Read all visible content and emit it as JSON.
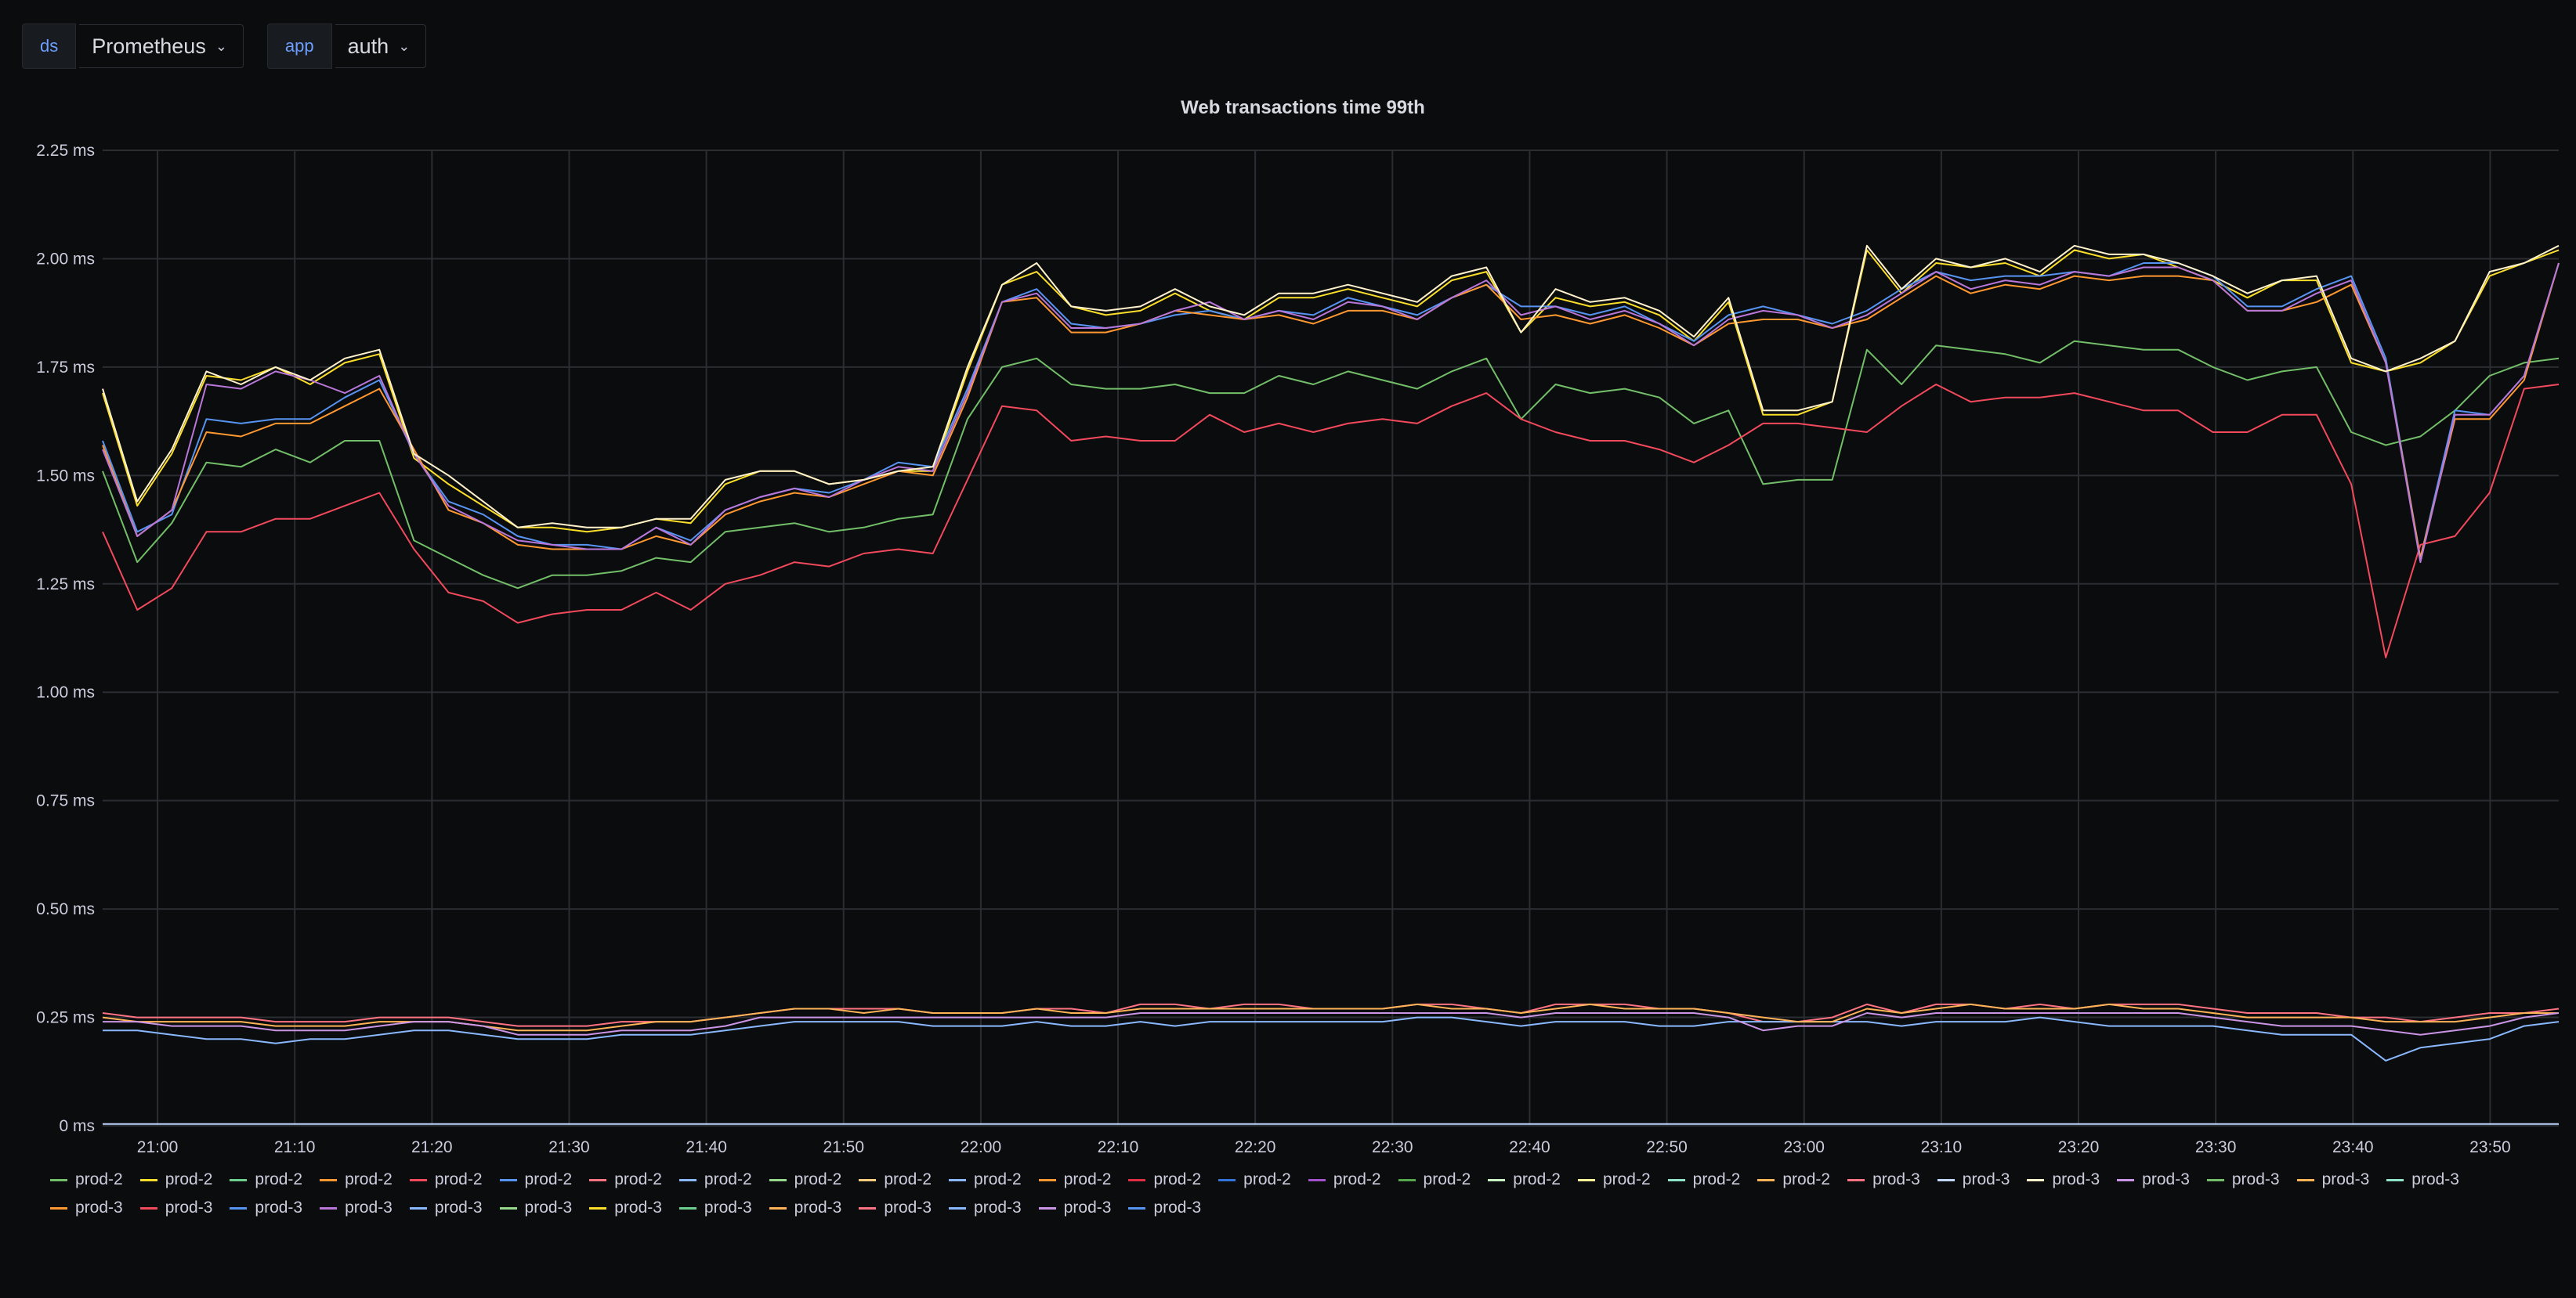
{
  "variables": [
    {
      "label": "ds",
      "value": "Prometheus"
    },
    {
      "label": "app",
      "value": "auth"
    }
  ],
  "chart_data": {
    "type": "line",
    "title": "Web transactions time 99th",
    "unit": "ms",
    "y_ticks": [
      "2.25 ms",
      "2.00 ms",
      "1.75 ms",
      "1.50 ms",
      "1.25 ms",
      "1.00 ms",
      "0.75 ms",
      "0.50 ms",
      "0.25 ms",
      "0 ms"
    ],
    "ylim": [
      0,
      2.25
    ],
    "x_ticks": [
      "21:00",
      "21:10",
      "21:20",
      "21:30",
      "21:40",
      "21:50",
      "22:00",
      "22:10",
      "22:20",
      "22:30",
      "22:40",
      "22:50",
      "23:00",
      "23:10",
      "23:20",
      "23:30",
      "23:40",
      "23:50"
    ],
    "x_range": [
      "20:56",
      "23:55"
    ],
    "grid": true,
    "legend_position": "bottom",
    "series": [
      {
        "name": "prod-2",
        "color": "#73bf69",
        "values": [
          1.51,
          1.3,
          1.39,
          1.53,
          1.52,
          1.56,
          1.53,
          1.58,
          1.58,
          1.35,
          1.31,
          1.27,
          1.24,
          1.27,
          1.27,
          1.28,
          1.31,
          1.3,
          1.37,
          1.38,
          1.39,
          1.37,
          1.38,
          1.4,
          1.41,
          1.63,
          1.75,
          1.77,
          1.71,
          1.7,
          1.7,
          1.71,
          1.69,
          1.69,
          1.73,
          1.71,
          1.74,
          1.72,
          1.7,
          1.74,
          1.77,
          1.63,
          1.71,
          1.69,
          1.7,
          1.68,
          1.62,
          1.65,
          1.48,
          1.49,
          1.49,
          1.79,
          1.71,
          1.8,
          1.79,
          1.78,
          1.76,
          1.81,
          1.8,
          1.79,
          1.79,
          1.75,
          1.72,
          1.74,
          1.75,
          1.6,
          1.57,
          1.59,
          1.65,
          1.73,
          1.76,
          1.77
        ]
      },
      {
        "name": "prod-2",
        "color": "#fade2a",
        "values": [
          1.69,
          1.43,
          1.55,
          1.73,
          1.72,
          1.75,
          1.71,
          1.76,
          1.78,
          1.54,
          1.48,
          1.43,
          1.38,
          1.38,
          1.37,
          1.38,
          1.4,
          1.39,
          1.48,
          1.51,
          1.51,
          1.48,
          1.49,
          1.51,
          1.51,
          1.74,
          1.94,
          1.97,
          1.89,
          1.87,
          1.88,
          1.92,
          1.88,
          1.86,
          1.91,
          1.91,
          1.93,
          1.91,
          1.89,
          1.95,
          1.97,
          1.83,
          1.91,
          1.89,
          1.9,
          1.87,
          1.81,
          1.9,
          1.64,
          1.64,
          1.67,
          2.02,
          1.92,
          1.99,
          1.98,
          1.99,
          1.96,
          2.02,
          2.0,
          2.01,
          1.98,
          1.95,
          1.91,
          1.95,
          1.95,
          1.76,
          1.74,
          1.76,
          1.81,
          1.96,
          1.99,
          2.02
        ]
      },
      {
        "name": "prod-2",
        "color": "#5794f2",
        "values": [
          1.58,
          1.37,
          1.41,
          1.63,
          1.62,
          1.63,
          1.63,
          1.68,
          1.72,
          1.55,
          1.44,
          1.41,
          1.36,
          1.34,
          1.34,
          1.33,
          1.38,
          1.35,
          1.42,
          1.45,
          1.47,
          1.46,
          1.49,
          1.53,
          1.52,
          1.7,
          1.9,
          1.93,
          1.85,
          1.84,
          1.85,
          1.87,
          1.88,
          1.86,
          1.88,
          1.87,
          1.91,
          1.89,
          1.87,
          1.91,
          1.94,
          1.89,
          1.89,
          1.87,
          1.89,
          1.85,
          1.81,
          1.87,
          1.89,
          1.87,
          1.85,
          1.88,
          1.93,
          1.97,
          1.95,
          1.96,
          1.96,
          1.97,
          1.96,
          1.99,
          1.99,
          1.96,
          1.89,
          1.89,
          1.93,
          1.96,
          1.77,
          1.31,
          1.65,
          1.64,
          1.73,
          1.99
        ]
      },
      {
        "name": "prod-2",
        "color": "#ff9830",
        "values": [
          1.57,
          1.36,
          1.42,
          1.6,
          1.59,
          1.62,
          1.62,
          1.66,
          1.7,
          1.56,
          1.42,
          1.39,
          1.34,
          1.33,
          1.33,
          1.33,
          1.36,
          1.34,
          1.41,
          1.44,
          1.46,
          1.45,
          1.48,
          1.51,
          1.5,
          1.68,
          1.9,
          1.91,
          1.83,
          1.83,
          1.85,
          1.88,
          1.87,
          1.86,
          1.87,
          1.85,
          1.88,
          1.88,
          1.86,
          1.91,
          1.94,
          1.86,
          1.87,
          1.85,
          1.87,
          1.84,
          1.8,
          1.85,
          1.86,
          1.86,
          1.84,
          1.86,
          1.91,
          1.96,
          1.92,
          1.94,
          1.93,
          1.96,
          1.95,
          1.96,
          1.96,
          1.95,
          1.88,
          1.88,
          1.9,
          1.94,
          1.76,
          1.31,
          1.63,
          1.63,
          1.72,
          1.99
        ]
      },
      {
        "name": "prod-2",
        "color": "#f2495c",
        "values": [
          1.37,
          1.19,
          1.24,
          1.37,
          1.37,
          1.4,
          1.4,
          1.43,
          1.46,
          1.33,
          1.23,
          1.21,
          1.16,
          1.18,
          1.19,
          1.19,
          1.23,
          1.19,
          1.25,
          1.27,
          1.3,
          1.29,
          1.32,
          1.33,
          1.32,
          1.49,
          1.66,
          1.65,
          1.58,
          1.59,
          1.58,
          1.58,
          1.64,
          1.6,
          1.62,
          1.6,
          1.62,
          1.63,
          1.62,
          1.66,
          1.69,
          1.63,
          1.6,
          1.58,
          1.58,
          1.56,
          1.53,
          1.57,
          1.62,
          1.62,
          1.61,
          1.6,
          1.66,
          1.71,
          1.67,
          1.68,
          1.68,
          1.69,
          1.67,
          1.65,
          1.65,
          1.6,
          1.6,
          1.64,
          1.64,
          1.48,
          1.08,
          1.34,
          1.36,
          1.46,
          1.7,
          1.71
        ]
      },
      {
        "name": "prod-2",
        "color": "#b877d9",
        "values": [
          1.56,
          1.36,
          1.42,
          1.71,
          1.7,
          1.74,
          1.72,
          1.69,
          1.73,
          1.55,
          1.43,
          1.39,
          1.35,
          1.34,
          1.33,
          1.33,
          1.38,
          1.34,
          1.42,
          1.45,
          1.47,
          1.45,
          1.49,
          1.52,
          1.51,
          1.69,
          1.9,
          1.92,
          1.84,
          1.84,
          1.85,
          1.88,
          1.9,
          1.86,
          1.88,
          1.86,
          1.9,
          1.89,
          1.86,
          1.91,
          1.95,
          1.87,
          1.89,
          1.86,
          1.88,
          1.85,
          1.8,
          1.86,
          1.88,
          1.87,
          1.84,
          1.87,
          1.92,
          1.97,
          1.93,
          1.95,
          1.94,
          1.97,
          1.96,
          1.98,
          1.98,
          1.95,
          1.88,
          1.88,
          1.92,
          1.95,
          1.76,
          1.3,
          1.64,
          1.64,
          1.73,
          1.99
        ]
      },
      {
        "name": "prod-2",
        "color": "#fff2cc",
        "values": [
          1.7,
          1.44,
          1.56,
          1.74,
          1.71,
          1.75,
          1.72,
          1.77,
          1.79,
          1.55,
          1.5,
          1.44,
          1.38,
          1.39,
          1.38,
          1.38,
          1.4,
          1.4,
          1.49,
          1.51,
          1.51,
          1.48,
          1.49,
          1.51,
          1.52,
          1.75,
          1.94,
          1.99,
          1.89,
          1.88,
          1.89,
          1.93,
          1.89,
          1.87,
          1.92,
          1.92,
          1.94,
          1.92,
          1.9,
          1.96,
          1.98,
          1.83,
          1.93,
          1.9,
          1.91,
          1.88,
          1.82,
          1.91,
          1.65,
          1.65,
          1.67,
          2.03,
          1.93,
          2.0,
          1.98,
          2.0,
          1.97,
          2.03,
          2.01,
          2.01,
          1.99,
          1.96,
          1.92,
          1.95,
          1.96,
          1.77,
          1.74,
          1.77,
          1.81,
          1.97,
          1.99,
          2.03
        ]
      },
      {
        "name": "prod-2",
        "color": "#ff7383",
        "values": [
          0.26,
          0.25,
          0.25,
          0.25,
          0.25,
          0.24,
          0.24,
          0.24,
          0.25,
          0.25,
          0.25,
          0.24,
          0.23,
          0.23,
          0.23,
          0.24,
          0.24,
          0.24,
          0.25,
          0.26,
          0.27,
          0.27,
          0.27,
          0.27,
          0.26,
          0.26,
          0.26,
          0.27,
          0.27,
          0.26,
          0.28,
          0.28,
          0.27,
          0.28,
          0.28,
          0.27,
          0.27,
          0.27,
          0.28,
          0.28,
          0.27,
          0.26,
          0.28,
          0.28,
          0.28,
          0.27,
          0.27,
          0.26,
          0.24,
          0.24,
          0.25,
          0.28,
          0.26,
          0.28,
          0.28,
          0.27,
          0.28,
          0.27,
          0.28,
          0.28,
          0.28,
          0.27,
          0.26,
          0.26,
          0.26,
          0.25,
          0.25,
          0.24,
          0.25,
          0.26,
          0.26,
          0.27
        ]
      },
      {
        "name": "prod-2",
        "color": "#8ab8ff",
        "values": [
          0.22,
          0.22,
          0.21,
          0.2,
          0.2,
          0.19,
          0.2,
          0.2,
          0.21,
          0.22,
          0.22,
          0.21,
          0.2,
          0.2,
          0.2,
          0.21,
          0.21,
          0.21,
          0.22,
          0.23,
          0.24,
          0.24,
          0.24,
          0.24,
          0.23,
          0.23,
          0.23,
          0.24,
          0.23,
          0.23,
          0.24,
          0.23,
          0.24,
          0.24,
          0.24,
          0.24,
          0.24,
          0.24,
          0.25,
          0.25,
          0.24,
          0.23,
          0.24,
          0.24,
          0.24,
          0.23,
          0.23,
          0.24,
          0.24,
          0.24,
          0.24,
          0.24,
          0.23,
          0.24,
          0.24,
          0.24,
          0.25,
          0.24,
          0.23,
          0.23,
          0.23,
          0.23,
          0.22,
          0.21,
          0.21,
          0.21,
          0.15,
          0.18,
          0.19,
          0.2,
          0.23,
          0.24
        ]
      },
      {
        "name": "prod-2",
        "color": "#ffb357",
        "values": [
          0.25,
          0.24,
          0.24,
          0.24,
          0.24,
          0.23,
          0.23,
          0.23,
          0.24,
          0.24,
          0.24,
          0.23,
          0.22,
          0.22,
          0.22,
          0.23,
          0.24,
          0.24,
          0.25,
          0.26,
          0.27,
          0.27,
          0.26,
          0.27,
          0.26,
          0.26,
          0.26,
          0.27,
          0.26,
          0.26,
          0.27,
          0.27,
          0.27,
          0.27,
          0.27,
          0.27,
          0.27,
          0.27,
          0.28,
          0.27,
          0.27,
          0.26,
          0.27,
          0.28,
          0.27,
          0.27,
          0.27,
          0.26,
          0.25,
          0.24,
          0.24,
          0.27,
          0.26,
          0.27,
          0.28,
          0.27,
          0.27,
          0.27,
          0.28,
          0.27,
          0.27,
          0.26,
          0.25,
          0.25,
          0.25,
          0.25,
          0.24,
          0.24,
          0.24,
          0.25,
          0.26,
          0.26
        ]
      },
      {
        "name": "prod-3",
        "color": "#ca95e5",
        "values": [
          0.24,
          0.24,
          0.23,
          0.23,
          0.23,
          0.22,
          0.22,
          0.22,
          0.23,
          0.24,
          0.24,
          0.23,
          0.21,
          0.21,
          0.21,
          0.22,
          0.22,
          0.22,
          0.23,
          0.25,
          0.25,
          0.25,
          0.25,
          0.25,
          0.25,
          0.25,
          0.25,
          0.25,
          0.25,
          0.25,
          0.26,
          0.26,
          0.26,
          0.26,
          0.26,
          0.26,
          0.26,
          0.26,
          0.26,
          0.26,
          0.26,
          0.25,
          0.26,
          0.26,
          0.26,
          0.26,
          0.26,
          0.25,
          0.22,
          0.23,
          0.23,
          0.26,
          0.25,
          0.26,
          0.26,
          0.26,
          0.26,
          0.26,
          0.26,
          0.26,
          0.26,
          0.25,
          0.24,
          0.23,
          0.23,
          0.23,
          0.22,
          0.21,
          0.22,
          0.23,
          0.25,
          0.26
        ]
      },
      {
        "name": "prod-3",
        "color": "#c0d8ff",
        "values": [
          0.004,
          0.004,
          0.004,
          0.004,
          0.004,
          0.004,
          0.004,
          0.004,
          0.004,
          0.004,
          0.004,
          0.004,
          0.004,
          0.004,
          0.004,
          0.004,
          0.004,
          0.004,
          0.004,
          0.004,
          0.004,
          0.004,
          0.004,
          0.004,
          0.004,
          0.004,
          0.004,
          0.004,
          0.004,
          0.004,
          0.004,
          0.004,
          0.004,
          0.004,
          0.004,
          0.004,
          0.004,
          0.004,
          0.004,
          0.004,
          0.004,
          0.004,
          0.004,
          0.004,
          0.004,
          0.004,
          0.004,
          0.004,
          0.004,
          0.004,
          0.004,
          0.004,
          0.004,
          0.004,
          0.004,
          0.004,
          0.004,
          0.004,
          0.004,
          0.004,
          0.004,
          0.004,
          0.004,
          0.004,
          0.004,
          0.004,
          0.004,
          0.004,
          0.004,
          0.004,
          0.004,
          0.004
        ]
      }
    ],
    "legend": [
      {
        "name": "prod-2",
        "color": "#73bf69"
      },
      {
        "name": "prod-2",
        "color": "#fade2a"
      },
      {
        "name": "prod-2",
        "color": "#6ccf8e"
      },
      {
        "name": "prod-2",
        "color": "#ff9830"
      },
      {
        "name": "prod-2",
        "color": "#f2495c"
      },
      {
        "name": "prod-2",
        "color": "#5794f2"
      },
      {
        "name": "prod-2",
        "color": "#ff7383"
      },
      {
        "name": "prod-2",
        "color": "#8ab8ff"
      },
      {
        "name": "prod-2",
        "color": "#96d98d"
      },
      {
        "name": "prod-2",
        "color": "#ffcb7d"
      },
      {
        "name": "prod-2",
        "color": "#8ab8ff"
      },
      {
        "name": "prod-2",
        "color": "#ff9830"
      },
      {
        "name": "prod-2",
        "color": "#e02f44"
      },
      {
        "name": "prod-2",
        "color": "#3274d9"
      },
      {
        "name": "prod-2",
        "color": "#a352cc"
      },
      {
        "name": "prod-2",
        "color": "#56a64b"
      },
      {
        "name": "prod-2",
        "color": "#c8f2c2"
      },
      {
        "name": "prod-2",
        "color": "#fff899"
      },
      {
        "name": "prod-2",
        "color": "#8fe3c9"
      },
      {
        "name": "prod-2",
        "color": "#ffb357"
      },
      {
        "name": "prod-3",
        "color": "#ff7383"
      },
      {
        "name": "prod-3",
        "color": "#c0d8ff"
      },
      {
        "name": "prod-3",
        "color": "#fff2cc"
      },
      {
        "name": "prod-3",
        "color": "#ca95e5"
      },
      {
        "name": "prod-3",
        "color": "#73bf69"
      },
      {
        "name": "prod-3",
        "color": "#ffb357"
      },
      {
        "name": "prod-3",
        "color": "#8fe3c9"
      },
      {
        "name": "prod-3",
        "color": "#ff9830"
      },
      {
        "name": "prod-3",
        "color": "#f2495c"
      },
      {
        "name": "prod-3",
        "color": "#5794f2"
      },
      {
        "name": "prod-3",
        "color": "#b877d9"
      },
      {
        "name": "prod-3",
        "color": "#8ab8ff"
      },
      {
        "name": "prod-3",
        "color": "#96d98d"
      },
      {
        "name": "prod-3",
        "color": "#fade2a"
      },
      {
        "name": "prod-3",
        "color": "#6ccf8e"
      },
      {
        "name": "prod-3",
        "color": "#ffb357"
      },
      {
        "name": "prod-3",
        "color": "#ff7383"
      },
      {
        "name": "prod-3",
        "color": "#8ab8ff"
      },
      {
        "name": "prod-3",
        "color": "#ca95e5"
      },
      {
        "name": "prod-3",
        "color": "#5794f2"
      }
    ]
  }
}
